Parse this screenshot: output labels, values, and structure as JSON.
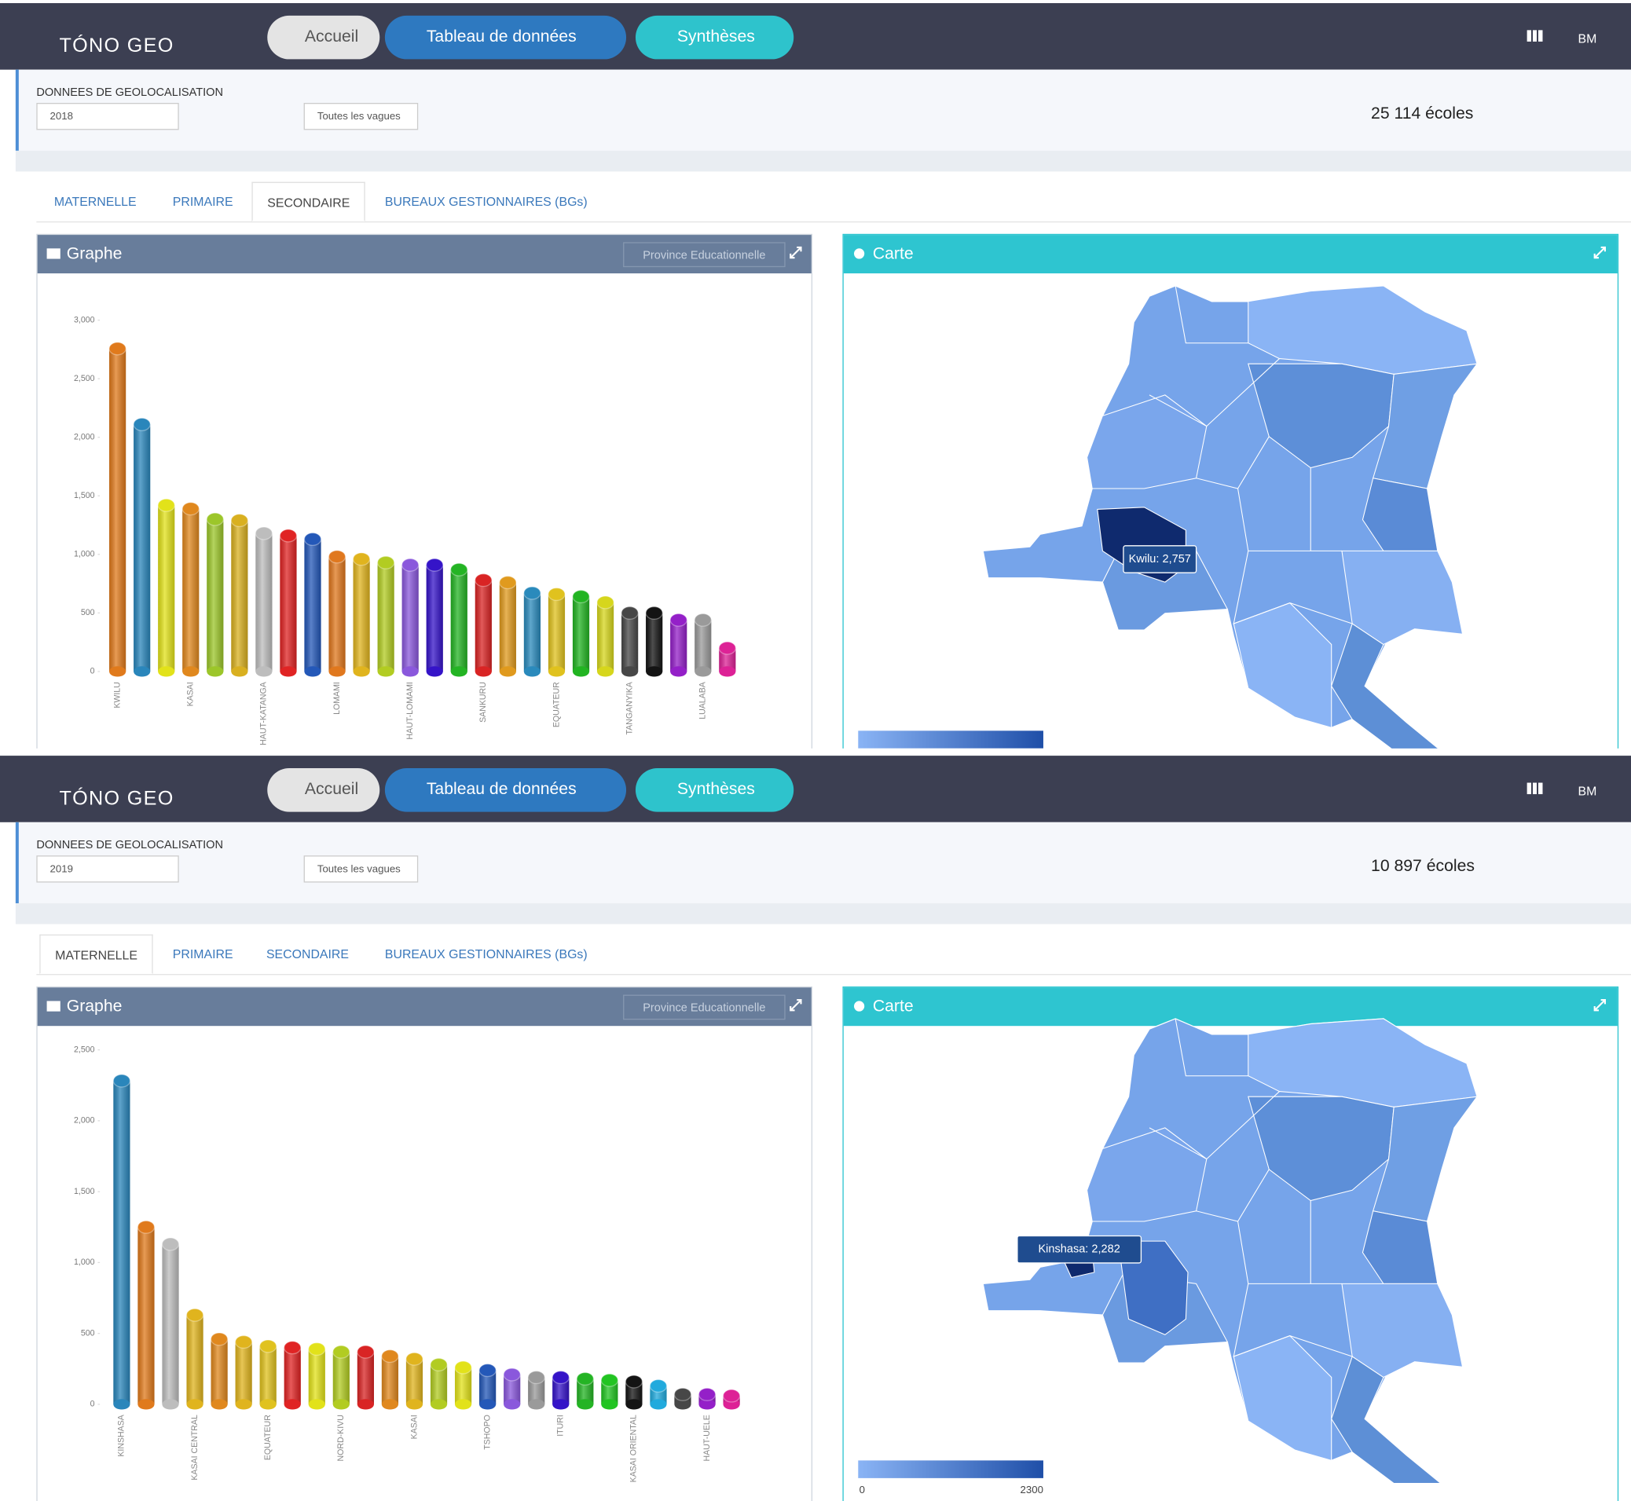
{
  "screens": [
    {
      "navbar": {
        "brand": "TÓNO GEO",
        "buttons": [
          "Accueil",
          "Tableau de données",
          "Synthèses"
        ],
        "user": "BM"
      },
      "filters": {
        "label": "DONNEES DE GEOLOCALISATION",
        "year": "2018",
        "wave": "Toutes les vagues",
        "count": "25 114 écoles"
      },
      "tabs": [
        "MATERNELLE",
        "PRIMAIRE",
        "SECONDAIRE",
        "BUREAUX GESTIONNAIRES (BGs)"
      ],
      "active_tab": 2,
      "graph_panel": {
        "title": "Graphe",
        "selector": "Province Educationnelle"
      },
      "map_panel": {
        "title": "Carte",
        "tooltip": "Kwilu: 2,757"
      }
    },
    {
      "navbar": {
        "brand": "TÓNO GEO",
        "buttons": [
          "Accueil",
          "Tableau de données",
          "Synthèses"
        ],
        "user": "BM"
      },
      "filters": {
        "label": "DONNEES DE GEOLOCALISATION",
        "year": "2019",
        "wave": "Toutes les vagues",
        "count": "10 897 écoles"
      },
      "tabs": [
        "MATERNELLE",
        "PRIMAIRE",
        "SECONDAIRE",
        "BUREAUX GESTIONNAIRES (BGs)"
      ],
      "active_tab": 0,
      "graph_panel": {
        "title": "Graphe",
        "selector": "Province Educationnelle"
      },
      "map_panel": {
        "title": "Carte",
        "tooltip": "Kinshasa: 2,282",
        "legend_min": 0,
        "legend_max": 2300
      }
    }
  ],
  "chart_data": [
    {
      "type": "bar",
      "categories": [
        "KWILU",
        null,
        null,
        "KASAI",
        null,
        null,
        "HAUT-KATANGA",
        null,
        null,
        "LOMAMI",
        null,
        null,
        "HAUT-LOMAMI",
        null,
        null,
        "SANKURU",
        null,
        null,
        "EQUATEUR",
        null,
        null,
        "TANGANYIKA",
        null,
        null,
        "LUALABA",
        null
      ],
      "values": [
        2757,
        2110,
        1420,
        1390,
        1300,
        1290,
        1180,
        1160,
        1130,
        980,
        960,
        930,
        910,
        910,
        870,
        780,
        760,
        670,
        660,
        640,
        590,
        500,
        500,
        440,
        440,
        200
      ],
      "colors": [
        "#e07a1c",
        "#2a86bb",
        "#e2e21a",
        "#e0881e",
        "#9cc62a",
        "#d9b020",
        "#bdbdbd",
        "#e02424",
        "#2458b8",
        "#e0781e",
        "#e0b41e",
        "#b2cc22",
        "#8a58dc",
        "#3514c8",
        "#24b424",
        "#d92424",
        "#e09a1e",
        "#2a8abc",
        "#e0c21e",
        "#22b422",
        "#d6d61c",
        "#474747",
        "#141414",
        "#9420c8",
        "#9a9a9a",
        "#dd2296"
      ],
      "ylim": [
        0,
        3000
      ],
      "yticks": [
        0,
        500,
        {
          "value": 1000,
          "label": "1,000"
        },
        {
          "value": 1500,
          "label": "1,500"
        },
        {
          "value": 2000,
          "label": "2,000"
        },
        {
          "value": 2500,
          "label": "2,500"
        },
        {
          "value": 3000,
          "label": "3,000"
        }
      ],
      "grid": false
    },
    {
      "type": "bar",
      "categories": [
        "KINSHASA",
        null,
        null,
        "KASAI CENTRAL",
        null,
        null,
        "EQUATEUR",
        null,
        null,
        "NORD-KIVU",
        null,
        null,
        "KASAI",
        null,
        null,
        "TSHOPO",
        null,
        null,
        "ITURI",
        null,
        null,
        "KASAI ORIENTAL",
        null,
        null,
        "HAUT-UELE",
        null
      ],
      "values": [
        2282,
        1250,
        1130,
        630,
        460,
        440,
        410,
        400,
        390,
        370,
        370,
        340,
        320,
        280,
        260,
        240,
        210,
        190,
        190,
        180,
        170,
        160,
        130,
        70,
        70,
        60
      ],
      "colors": [
        "#2a86bb",
        "#e07a1c",
        "#bdbdbd",
        "#e0b41e",
        "#e0881e",
        "#e0b41e",
        "#e0c21e",
        "#e02424",
        "#e2e21a",
        "#b2cc22",
        "#d92424",
        "#e0881e",
        "#e0b41e",
        "#b2cc22",
        "#e2e21a",
        "#2458b8",
        "#8a58dc",
        "#9a9a9a",
        "#3514c8",
        "#24b424",
        "#22c422",
        "#141414",
        "#22aadd",
        "#474747",
        "#9420c8",
        "#dd2296"
      ],
      "ylim": [
        0,
        2500
      ],
      "yticks": [
        0,
        500,
        {
          "value": 1000,
          "label": "1,000"
        },
        {
          "value": 1500,
          "label": "1,500"
        },
        {
          "value": 2000,
          "label": "2,000"
        },
        {
          "value": 2500,
          "label": "2,500"
        }
      ],
      "grid": false
    }
  ]
}
